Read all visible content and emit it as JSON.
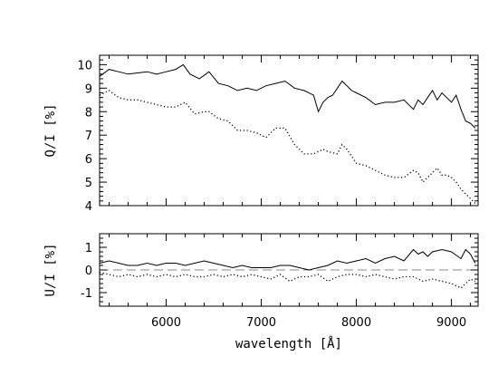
{
  "chart_data": [
    {
      "type": "line",
      "panel": "top",
      "ylabel": "Q/I [%]",
      "xlim": [
        5300,
        9280
      ],
      "ylim": [
        4,
        10.4
      ],
      "yticks": [
        4,
        5,
        6,
        7,
        8,
        9,
        10
      ],
      "series": [
        {
          "style": "solid",
          "x": [
            5300,
            5400,
            5500,
            5600,
            5700,
            5800,
            5900,
            6000,
            6100,
            6180,
            6250,
            6350,
            6450,
            6550,
            6650,
            6750,
            6850,
            6950,
            7050,
            7150,
            7250,
            7350,
            7450,
            7550,
            7600,
            7650,
            7700,
            7750,
            7800,
            7850,
            7900,
            7950,
            8000,
            8100,
            8200,
            8300,
            8400,
            8500,
            8600,
            8650,
            8700,
            8750,
            8800,
            8850,
            8900,
            8950,
            9000,
            9050,
            9100,
            9150,
            9200,
            9250
          ],
          "y": [
            9.5,
            9.8,
            9.7,
            9.6,
            9.65,
            9.7,
            9.6,
            9.7,
            9.8,
            10.0,
            9.6,
            9.4,
            9.7,
            9.2,
            9.1,
            8.9,
            9.0,
            8.9,
            9.1,
            9.2,
            9.3,
            9.0,
            8.9,
            8.7,
            8.0,
            8.4,
            8.6,
            8.7,
            9.0,
            9.3,
            9.1,
            8.9,
            8.8,
            8.6,
            8.3,
            8.4,
            8.4,
            8.5,
            8.1,
            8.5,
            8.3,
            8.6,
            8.9,
            8.5,
            8.8,
            8.6,
            8.4,
            8.7,
            8.1,
            7.6,
            7.5,
            7.3
          ]
        },
        {
          "style": "dotted",
          "x": [
            5300,
            5400,
            5500,
            5600,
            5700,
            5800,
            5900,
            6000,
            6100,
            6200,
            6300,
            6400,
            6450,
            6550,
            6650,
            6750,
            6850,
            6950,
            7050,
            7150,
            7250,
            7350,
            7450,
            7550,
            7650,
            7700,
            7800,
            7850,
            7900,
            8000,
            8100,
            8200,
            8300,
            8400,
            8500,
            8600,
            8650,
            8700,
            8750,
            8850,
            8900,
            8950,
            9000,
            9050,
            9100,
            9150,
            9200,
            9250
          ],
          "y": [
            8.7,
            8.9,
            8.6,
            8.5,
            8.5,
            8.4,
            8.3,
            8.2,
            8.2,
            8.4,
            7.9,
            8.0,
            8.0,
            7.7,
            7.6,
            7.2,
            7.2,
            7.1,
            6.9,
            7.3,
            7.3,
            6.6,
            6.2,
            6.2,
            6.4,
            6.3,
            6.2,
            6.6,
            6.4,
            5.8,
            5.7,
            5.5,
            5.3,
            5.2,
            5.2,
            5.5,
            5.4,
            5.0,
            5.2,
            5.6,
            5.3,
            5.3,
            5.2,
            5.0,
            4.7,
            4.5,
            4.3,
            4.1
          ]
        }
      ]
    },
    {
      "type": "line",
      "panel": "bottom",
      "ylabel": "U/I [%]",
      "xlabel": "wavelength [Å]",
      "xlim": [
        5300,
        9280
      ],
      "ylim": [
        -1.6,
        1.6
      ],
      "yticks": [
        -1,
        0,
        1
      ],
      "xticks": [
        6000,
        7000,
        8000,
        9000
      ],
      "zero_line": "dashed",
      "series": [
        {
          "style": "solid",
          "x": [
            5300,
            5400,
            5500,
            5600,
            5700,
            5800,
            5900,
            6000,
            6100,
            6200,
            6300,
            6400,
            6500,
            6600,
            6700,
            6800,
            6900,
            7000,
            7100,
            7200,
            7300,
            7400,
            7500,
            7600,
            7700,
            7800,
            7900,
            8000,
            8100,
            8200,
            8300,
            8400,
            8500,
            8600,
            8650,
            8700,
            8750,
            8800,
            8900,
            9000,
            9100,
            9150,
            9200,
            9250
          ],
          "y": [
            0.3,
            0.4,
            0.3,
            0.2,
            0.2,
            0.3,
            0.2,
            0.3,
            0.3,
            0.2,
            0.3,
            0.4,
            0.3,
            0.2,
            0.1,
            0.2,
            0.1,
            0.1,
            0.1,
            0.2,
            0.2,
            0.1,
            0.0,
            0.1,
            0.2,
            0.4,
            0.3,
            0.4,
            0.5,
            0.3,
            0.5,
            0.6,
            0.4,
            0.9,
            0.7,
            0.8,
            0.6,
            0.8,
            0.9,
            0.8,
            0.5,
            0.9,
            0.7,
            0.3
          ]
        },
        {
          "style": "dotted",
          "x": [
            5300,
            5400,
            5500,
            5600,
            5700,
            5800,
            5900,
            6000,
            6100,
            6200,
            6300,
            6400,
            6500,
            6600,
            6700,
            6800,
            6900,
            7000,
            7100,
            7200,
            7300,
            7400,
            7500,
            7600,
            7700,
            7800,
            7900,
            8000,
            8100,
            8200,
            8300,
            8400,
            8500,
            8600,
            8700,
            8800,
            8900,
            9000,
            9100,
            9150,
            9200,
            9250
          ],
          "y": [
            -0.1,
            -0.2,
            -0.3,
            -0.2,
            -0.3,
            -0.2,
            -0.3,
            -0.2,
            -0.3,
            -0.2,
            -0.3,
            -0.3,
            -0.2,
            -0.3,
            -0.2,
            -0.3,
            -0.2,
            -0.3,
            -0.4,
            -0.2,
            -0.5,
            -0.3,
            -0.3,
            -0.2,
            -0.5,
            -0.3,
            -0.2,
            -0.2,
            -0.3,
            -0.2,
            -0.3,
            -0.4,
            -0.3,
            -0.3,
            -0.5,
            -0.4,
            -0.5,
            -0.6,
            -0.8,
            -0.6,
            -0.4,
            -0.5
          ]
        }
      ]
    }
  ]
}
